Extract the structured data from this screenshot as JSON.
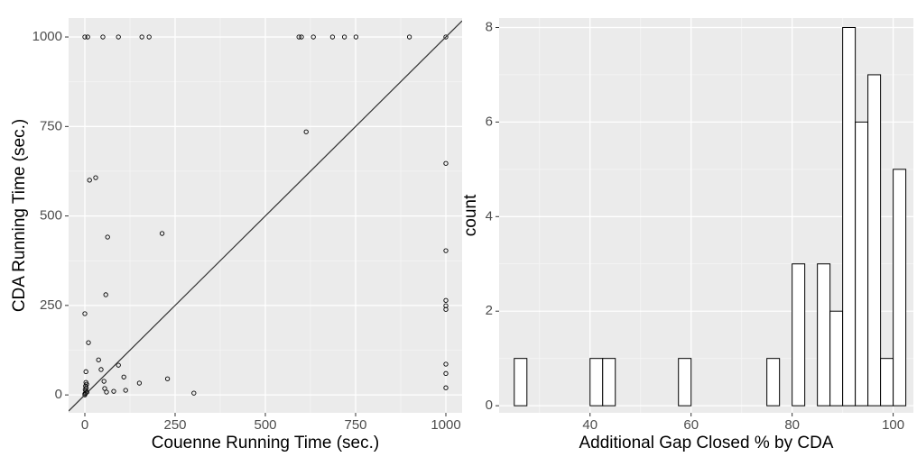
{
  "chart_data": [
    {
      "type": "scatter",
      "xlabel": "Couenne Running Time (sec.)",
      "ylabel": "CDA Running Time (sec.)",
      "x": [
        0,
        8,
        50,
        93,
        158,
        178,
        593,
        600,
        633,
        686,
        719,
        751,
        899,
        1000,
        613,
        1000,
        1000,
        1000,
        1000,
        1000,
        1000,
        1000,
        1000,
        13,
        30,
        63,
        58,
        214,
        0,
        10,
        3,
        38,
        45,
        93,
        108,
        229,
        151,
        113,
        80,
        302,
        53,
        55,
        60,
        0,
        2,
        3,
        1,
        4,
        2,
        5,
        3,
        0,
        6
      ],
      "y": [
        1000,
        1000,
        1000,
        1000,
        1000,
        1000,
        1000,
        1000,
        1000,
        1000,
        1000,
        1000,
        1000,
        1000,
        735,
        647,
        403,
        264,
        249,
        239,
        86,
        60,
        20,
        600,
        607,
        441,
        280,
        451,
        227,
        146,
        65,
        98,
        71,
        83,
        50,
        45,
        33,
        13,
        10,
        5,
        38,
        18,
        8,
        0,
        5,
        10,
        15,
        20,
        25,
        30,
        35,
        3,
        8
      ],
      "color": "#000000",
      "reference_line": {
        "slope": 1,
        "intercept": 0
      },
      "xlim": [
        -45,
        1045
      ],
      "ylim": [
        -50,
        1053
      ],
      "xticks": [
        0,
        250,
        500,
        750,
        1000
      ],
      "yticks": [
        0,
        250,
        500,
        750,
        1000
      ],
      "grid": true
    },
    {
      "type": "histogram",
      "xlabel": "Additional Gap Closed % by CDA",
      "ylabel": "count",
      "bins": [
        25,
        27.5,
        30,
        32.5,
        35,
        37.5,
        40,
        42.5,
        45,
        47.5,
        50,
        52.5,
        55,
        57.5,
        60,
        62.5,
        65,
        67.5,
        70,
        72.5,
        75,
        77.5,
        80,
        82.5,
        85,
        87.5,
        90,
        92.5,
        95,
        97.5,
        100,
        102.5
      ],
      "values": [
        1,
        0,
        0,
        0,
        0,
        0,
        1,
        1,
        0,
        0,
        0,
        0,
        0,
        1,
        0,
        0,
        0,
        0,
        0,
        0,
        1,
        0,
        3,
        0,
        3,
        2,
        8,
        6,
        7,
        1,
        5
      ],
      "color": "#ffffff",
      "xlim": [
        22,
        104
      ],
      "ylim": [
        -0.15,
        8.2
      ],
      "xticks": [
        40,
        60,
        80,
        100
      ],
      "yticks": [
        0,
        2,
        4,
        6,
        8
      ],
      "grid": true
    }
  ]
}
